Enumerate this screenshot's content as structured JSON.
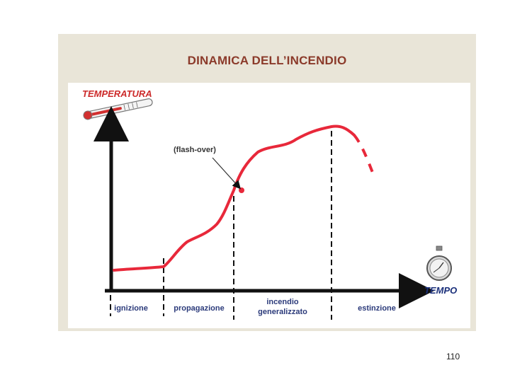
{
  "slide": {
    "title": "DINAMICA DELL’INCENDIO",
    "page_number": "110"
  },
  "diagram": {
    "y_axis_label": "TEMPERATURA",
    "x_axis_label": "TEMPO",
    "annotation": "(flash-over)",
    "phases": [
      {
        "lines": [
          "ignizione"
        ]
      },
      {
        "lines": [
          "propagazione"
        ]
      },
      {
        "lines": [
          "incendio",
          "generalizzato"
        ]
      },
      {
        "lines": [
          "estinzione"
        ]
      }
    ],
    "icons": [
      "thermometer-icon",
      "stopwatch-icon"
    ],
    "colors": {
      "curve": "#e8283a",
      "title": "#8b3a2a",
      "axis_label": "#cc2a2a",
      "tempo_label": "#1a2f7a",
      "axes": "#111111",
      "frame": "#e9e5d8"
    }
  }
}
